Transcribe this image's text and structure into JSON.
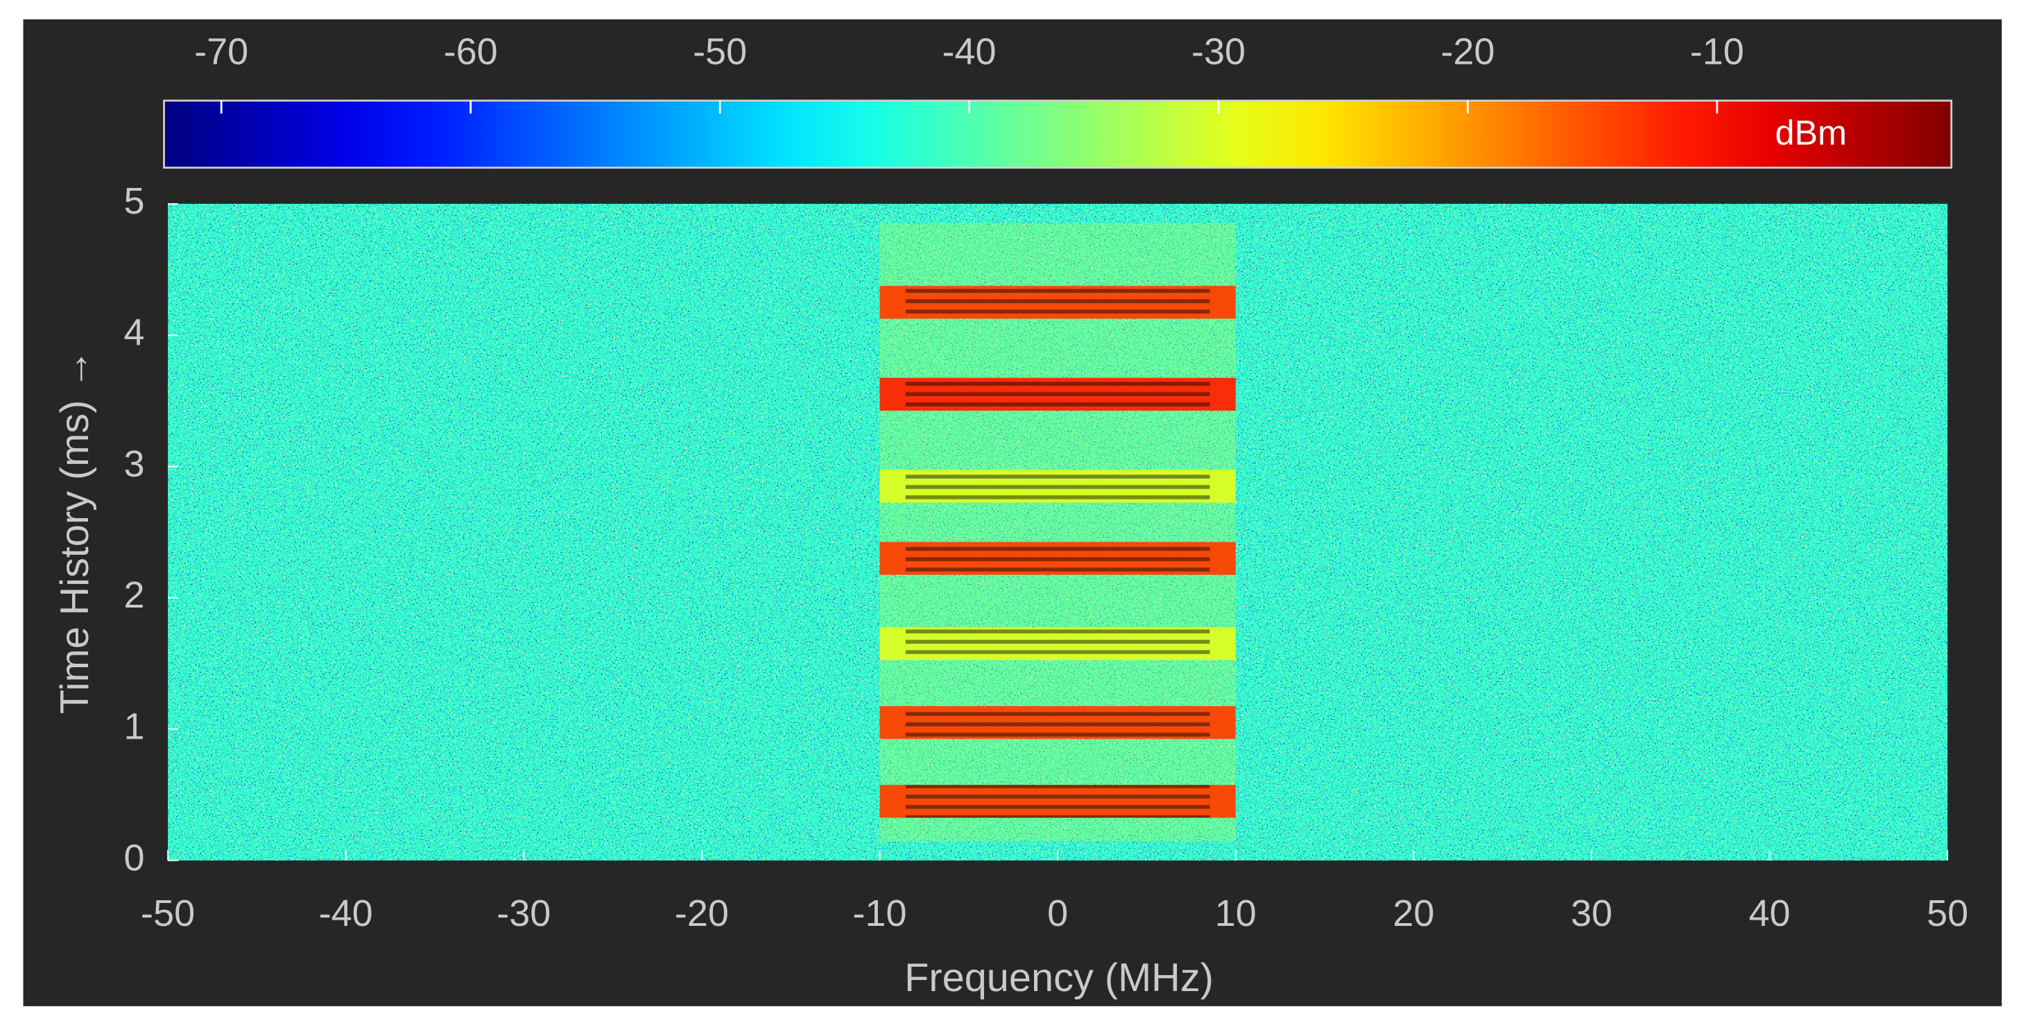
{
  "chart_data": {
    "type": "spectrogram",
    "xlabel": "Frequency (MHz)",
    "ylabel": "Time History (ms) →",
    "xlim": [
      -50,
      50
    ],
    "xticks": [
      -50,
      -40,
      -30,
      -20,
      -10,
      0,
      10,
      20,
      30,
      40,
      50
    ],
    "ylim": [
      0,
      5
    ],
    "yticks": [
      0,
      1,
      2,
      3,
      4,
      5
    ],
    "colormap": "jet",
    "colorbar": {
      "label": "dBm",
      "clim": [
        -72.3,
        -0.6
      ],
      "ticks": [
        -70,
        -60,
        -50,
        -40,
        -30,
        -20,
        -10
      ]
    },
    "noise_floor": -42,
    "signal_band": [
      -10,
      10
    ],
    "burst_times": [
      0.45,
      1.05,
      1.65,
      2.3,
      2.85,
      3.55,
      4.25
    ],
    "burst_levels": [
      -14,
      -14,
      -30,
      -14,
      -30,
      -12,
      -14
    ]
  }
}
